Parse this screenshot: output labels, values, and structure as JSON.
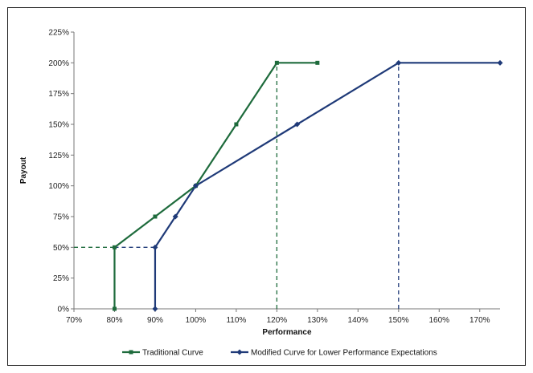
{
  "chart_data": {
    "type": "line",
    "title": "",
    "xlabel": "Performance",
    "ylabel": "Payout",
    "xlim": [
      70,
      175
    ],
    "ylim": [
      0,
      225
    ],
    "x_ticks": [
      "70%",
      "80%",
      "90%",
      "100%",
      "110%",
      "120%",
      "130%",
      "140%",
      "150%",
      "160%",
      "170%"
    ],
    "y_ticks": [
      "0%",
      "25%",
      "50%",
      "75%",
      "100%",
      "125%",
      "150%",
      "175%",
      "200%",
      "225%"
    ],
    "grid": false,
    "legend_position": "bottom",
    "series": [
      {
        "name": "Traditional Curve",
        "color": "#1e6b3c",
        "points": [
          [
            80,
            0
          ],
          [
            80,
            50
          ],
          [
            90,
            75
          ],
          [
            100,
            100
          ],
          [
            110,
            150
          ],
          [
            120,
            200
          ],
          [
            130,
            200
          ]
        ]
      },
      {
        "name": "Modified Curve for Lower Performance Expectations",
        "color": "#1f3a78",
        "points": [
          [
            90,
            0
          ],
          [
            90,
            50
          ],
          [
            95,
            75
          ],
          [
            100,
            100
          ],
          [
            125,
            150
          ],
          [
            150,
            200
          ],
          [
            175,
            200
          ]
        ]
      }
    ],
    "reference_lines": [
      {
        "color": "#1e6b3c",
        "points": [
          [
            70,
            50
          ],
          [
            80,
            50
          ]
        ]
      },
      {
        "color": "#1f3a78",
        "points": [
          [
            80,
            50
          ],
          [
            90,
            50
          ]
        ]
      },
      {
        "color": "#1e6b3c",
        "points": [
          [
            120,
            0
          ],
          [
            120,
            200
          ]
        ]
      },
      {
        "color": "#1f3a78",
        "points": [
          [
            150,
            0
          ],
          [
            150,
            200
          ]
        ]
      }
    ]
  }
}
